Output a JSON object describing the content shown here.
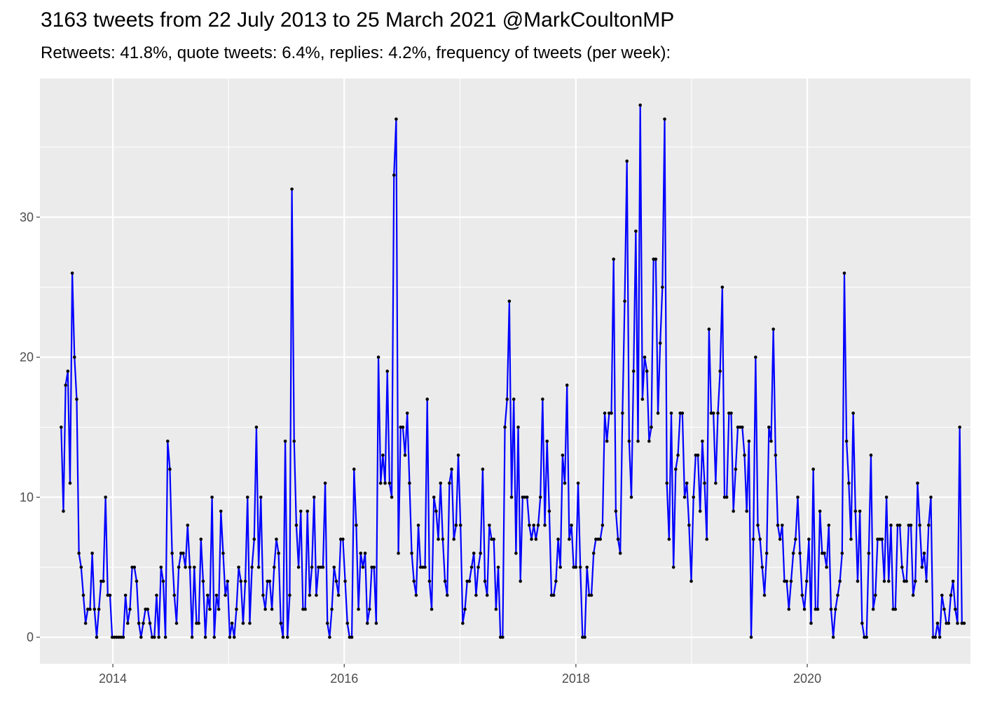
{
  "chart_data": {
    "type": "line",
    "title": "3163 tweets from 22 July 2013 to 25 March 2021 @MarkCoultonMP",
    "subtitle": "Retweets: 41.8%, quote tweets: 6.4%, replies: 4.2%, frequency of tweets (per week):",
    "xlabel": "",
    "ylabel": "",
    "x_ticks": [
      "2014",
      "2016",
      "2018",
      "2020"
    ],
    "y_ticks": [
      0,
      10,
      20,
      30
    ],
    "ylim": [
      -1.9,
      39.9
    ],
    "xlim": [
      "2013-05-16",
      "2021-05-30"
    ],
    "grid": true,
    "colors": {
      "line": "#0000ff",
      "point": "#000000",
      "panel": "#ebebeb",
      "grid": "#ffffff"
    },
    "series": [
      {
        "start": "2013-07-22",
        "interval_days": 7,
        "values": [
          15,
          9,
          18,
          19,
          11,
          26,
          20,
          17,
          6,
          5,
          3,
          1,
          2,
          2,
          6,
          2,
          0,
          2,
          4,
          4,
          10,
          3,
          3,
          0,
          0,
          0,
          0,
          0,
          0,
          3,
          1,
          2,
          5,
          5,
          4,
          1,
          0,
          1,
          2,
          2,
          1,
          0,
          0,
          3,
          0,
          5,
          4,
          0,
          14,
          12,
          6,
          3,
          1,
          5,
          6,
          6,
          5,
          8,
          5,
          0,
          5,
          1,
          1,
          7,
          4,
          0,
          3,
          2,
          10,
          0,
          3,
          2,
          9,
          6,
          3,
          4,
          0,
          1,
          0,
          2,
          5,
          4,
          1,
          4,
          10,
          1,
          5,
          7,
          15,
          5,
          10,
          3,
          2,
          4,
          4,
          2,
          5,
          7,
          6,
          1,
          0,
          14,
          0,
          3,
          32,
          14,
          8,
          5,
          9,
          2,
          2,
          9,
          3,
          5,
          10,
          3,
          5,
          5,
          5,
          11,
          1,
          0,
          2,
          5,
          4,
          3,
          7,
          7,
          4,
          1,
          0,
          0,
          12,
          8,
          2,
          6,
          5,
          6,
          1,
          2,
          5,
          5,
          1,
          20,
          11,
          13,
          11,
          19,
          11,
          10,
          33,
          37,
          6,
          15,
          15,
          13,
          16,
          11,
          6,
          4,
          3,
          8,
          5,
          5,
          5,
          17,
          4,
          2,
          10,
          9,
          7,
          11,
          7,
          4,
          3,
          11,
          12,
          7,
          8,
          13,
          8,
          1,
          2,
          4,
          4,
          5,
          6,
          3,
          5,
          6,
          12,
          4,
          3,
          8,
          7,
          7,
          2,
          5,
          0,
          0,
          15,
          17,
          24,
          10,
          17,
          6,
          15,
          4,
          10,
          10,
          10,
          8,
          7,
          8,
          7,
          8,
          10,
          17,
          8,
          14,
          9,
          3,
          3,
          4,
          7,
          5,
          13,
          11,
          18,
          7,
          8,
          5,
          5,
          11,
          5,
          0,
          0,
          5,
          3,
          3,
          6,
          7,
          7,
          7,
          8,
          16,
          14,
          16,
          16,
          27,
          9,
          7,
          6,
          16,
          24,
          34,
          14,
          10,
          19,
          29,
          14,
          38,
          17,
          20,
          19,
          14,
          15,
          27,
          27,
          16,
          21,
          25,
          37,
          11,
          7,
          16,
          5,
          12,
          13,
          16,
          16,
          10,
          11,
          8,
          4,
          10,
          13,
          13,
          9,
          14,
          11,
          7,
          22,
          16,
          16,
          11,
          16,
          19,
          25,
          10,
          10,
          16,
          16,
          9,
          12,
          15,
          15,
          15,
          13,
          9,
          14,
          0,
          7,
          20,
          8,
          7,
          5,
          3,
          6,
          15,
          14,
          22,
          13,
          8,
          7,
          8,
          4,
          4,
          2,
          4,
          6,
          7,
          10,
          6,
          3,
          2,
          4,
          7,
          1,
          12,
          2,
          2,
          9,
          6,
          6,
          5,
          8,
          2,
          0,
          2,
          3,
          4,
          6,
          26,
          14,
          11,
          7,
          16,
          9,
          4,
          9,
          1,
          0,
          0,
          6,
          13,
          2,
          3,
          7,
          7,
          7,
          4,
          10,
          4,
          8,
          2,
          2,
          8,
          8,
          5,
          4,
          4,
          8,
          8,
          3,
          4,
          11,
          8,
          5,
          6,
          4,
          8,
          10,
          0,
          0,
          1,
          0,
          3,
          2,
          1,
          1,
          3,
          4,
          2,
          1,
          15,
          1,
          1
        ]
      }
    ]
  }
}
